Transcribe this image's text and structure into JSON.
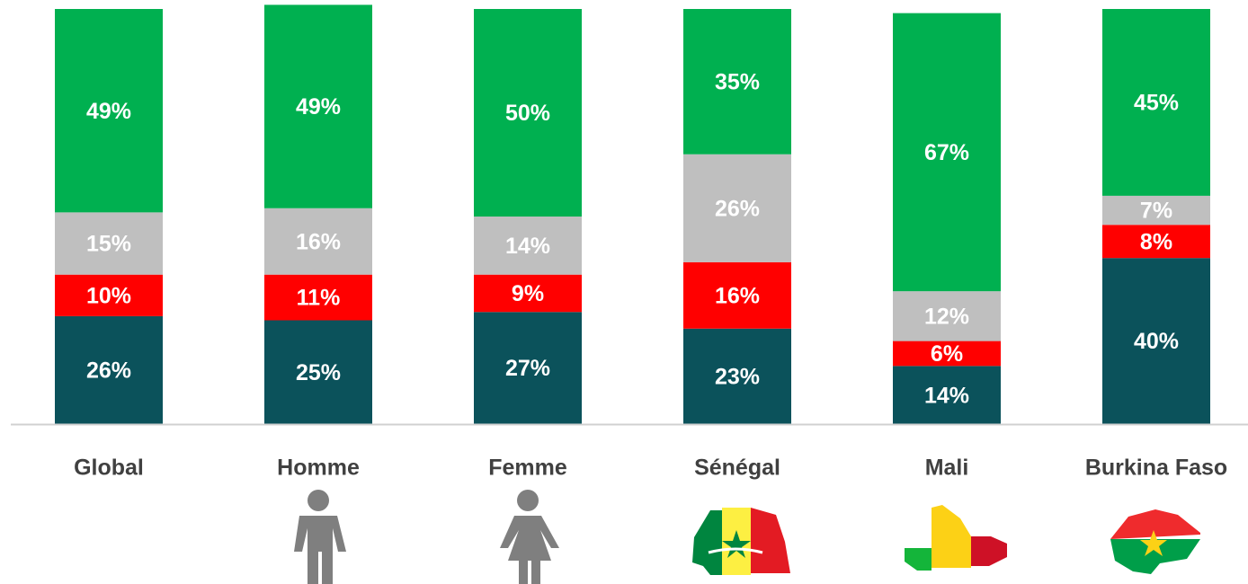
{
  "chart_data": {
    "type": "stacked_bar",
    "categories": [
      "Global",
      "Homme",
      "Femme",
      "Sénégal",
      "Mali",
      "Burkina Faso"
    ],
    "series": [
      {
        "color": "#0b525b",
        "values": [
          26,
          25,
          27,
          23,
          14,
          40
        ],
        "value_labels": [
          "26%",
          "25%",
          "27%",
          "23%",
          "14%",
          "40%"
        ]
      },
      {
        "color": "#ff0000",
        "values": [
          10,
          11,
          9,
          16,
          6,
          8
        ],
        "value_labels": [
          "10%",
          "11%",
          "9%",
          "16%",
          "6%",
          "8%"
        ]
      },
      {
        "color": "#bfbfbf",
        "values": [
          15,
          16,
          14,
          26,
          12,
          7
        ],
        "value_labels": [
          "15%",
          "16%",
          "14%",
          "26%",
          "12%",
          "7%"
        ]
      },
      {
        "color": "#00b050",
        "values": [
          49,
          49,
          50,
          35,
          67,
          45
        ],
        "value_labels": [
          "49%",
          "49%",
          "50%",
          "35%",
          "67%",
          "45%"
        ]
      }
    ]
  }
}
